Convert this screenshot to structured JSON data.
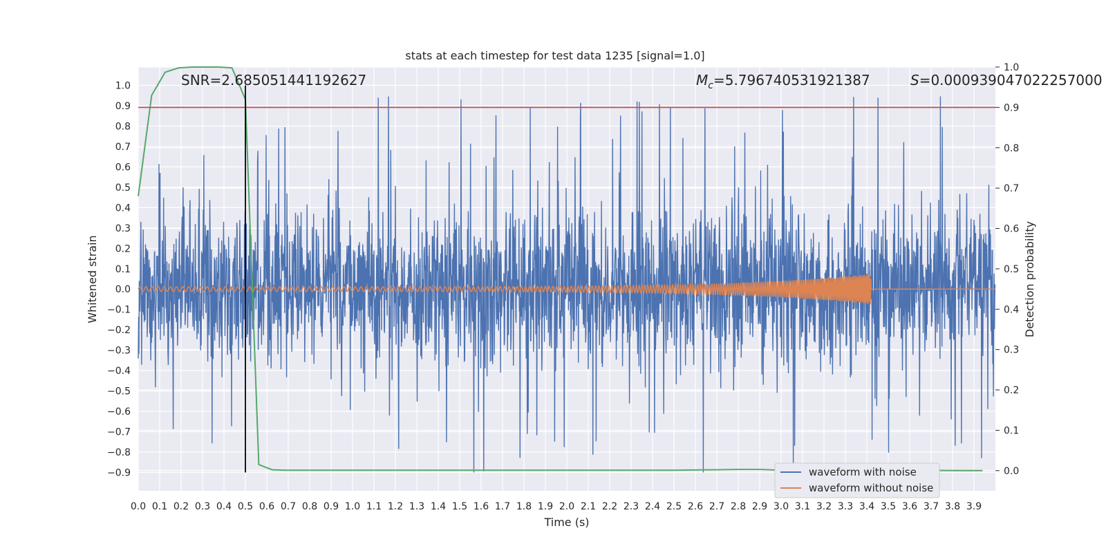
{
  "chart_data": {
    "type": "line",
    "title": "stats at each timestep for test data 1235 [signal=1.0]",
    "xlabel": "Time (s)",
    "ylabel_left": "Whitened strain",
    "ylabel_right": "Detection probability",
    "xlim": [
      0.0,
      4.0
    ],
    "ylim_left": [
      -0.99,
      1.09
    ],
    "ylim_right": [
      -0.05,
      1.0
    ],
    "x_ticks": [
      "0.0",
      "0.1",
      "0.2",
      "0.3",
      "0.4",
      "0.5",
      "0.6",
      "0.7",
      "0.8",
      "0.9",
      "1.0",
      "1.1",
      "1.2",
      "1.3",
      "1.4",
      "1.5",
      "1.6",
      "1.7",
      "1.8",
      "1.9",
      "2.0",
      "2.1",
      "2.2",
      "2.3",
      "2.4",
      "2.5",
      "2.6",
      "2.7",
      "2.8",
      "2.9",
      "3.0",
      "3.1",
      "3.2",
      "3.3",
      "3.4",
      "3.5",
      "3.6",
      "3.7",
      "3.8",
      "3.9"
    ],
    "y_ticks_left": [
      "1.0",
      "0.9",
      "0.8",
      "0.7",
      "0.6",
      "0.5",
      "0.4",
      "0.3",
      "0.2",
      "0.1",
      "0.0",
      "−0.1",
      "−0.2",
      "−0.3",
      "−0.4",
      "−0.5",
      "−0.6",
      "−0.7",
      "−0.8",
      "−0.9"
    ],
    "y_ticks_right": [
      "1.0",
      "0.9",
      "0.8",
      "0.7",
      "0.6",
      "0.5",
      "0.4",
      "0.3",
      "0.2",
      "0.1",
      "0.0"
    ],
    "grid": true,
    "legend_position": "bottom-right",
    "annotations": {
      "snr": "SNR=2.685051441192627",
      "mc_symbol": "M",
      "mc_sub": "c",
      "mc_value": "=5.796740531921387",
      "s_symbol": "S",
      "s_value": "=0.000939047022257000"
    },
    "marker_time": 0.5,
    "threshold_probability": 0.9,
    "series": [
      {
        "name": "waveform with noise",
        "axis": "left",
        "color": "#4c72b0",
        "description": "whitened strain noise, approx. within [-0.9, 1.0]",
        "envelope": [
          -0.9,
          1.0
        ]
      },
      {
        "name": "waveform without noise",
        "axis": "left",
        "color": "#dd8452",
        "description": "chirp signal ending at t=3.42 s",
        "chirp_end": 3.42,
        "amplitude_start": 0.012,
        "amplitude_end": 0.075
      },
      {
        "name": "detection probability",
        "axis": "right",
        "color": "#55a868",
        "x": [
          0.0,
          0.0625,
          0.125,
          0.1875,
          0.25,
          0.3125,
          0.375,
          0.4375,
          0.5,
          0.5625,
          0.625,
          0.6875,
          0.75,
          1.0,
          1.5,
          2.0,
          2.5,
          2.7,
          2.8,
          2.9,
          3.0,
          3.5,
          3.94
        ],
        "values": [
          0.68,
          0.93,
          0.987,
          0.998,
          1.0,
          1.0,
          1.0,
          0.998,
          0.92,
          0.015,
          0.002,
          0.001,
          0.001,
          0.001,
          0.001,
          0.001,
          0.001,
          0.002,
          0.003,
          0.003,
          0.001,
          0.001,
          0.0
        ]
      },
      {
        "name": "threshold",
        "axis": "right",
        "color": "#c44e52",
        "values": [
          0.9
        ]
      },
      {
        "name": "time marker",
        "axis": "left",
        "color": "#000000",
        "x": [
          0.5
        ],
        "range": [
          -0.9,
          1.0
        ]
      }
    ],
    "legend": [
      "waveform with noise",
      "waveform without noise"
    ]
  }
}
